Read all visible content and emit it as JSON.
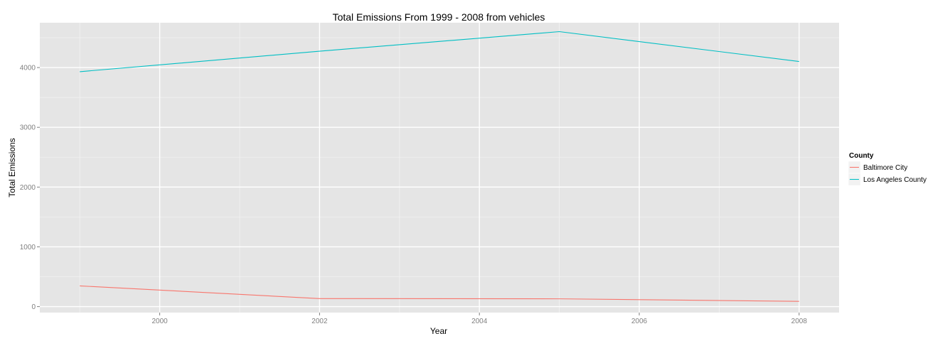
{
  "chart_data": {
    "type": "line",
    "title": "Total Emissions From 1999 - 2008 from vehicles",
    "xlabel": "Year",
    "ylabel": "Total Emissions",
    "xlim": [
      1998.5,
      2008.5
    ],
    "ylim": [
      -100,
      4750
    ],
    "x_ticks": [
      2000,
      2002,
      2004,
      2006,
      2008
    ],
    "y_ticks": [
      0,
      1000,
      2000,
      3000,
      4000
    ],
    "x_tick_labels": [
      "2000",
      "2002",
      "2004",
      "2006",
      "2008"
    ],
    "y_tick_labels": [
      "0",
      "1000",
      "2000",
      "3000",
      "4000"
    ],
    "grid": true,
    "legend": {
      "title": "County",
      "position": "right"
    },
    "series": [
      {
        "name": "Baltimore City",
        "color": "#F8766D",
        "x": [
          1999,
          2002,
          2005,
          2008
        ],
        "y": [
          346.82,
          134.31,
          130.43,
          88.28
        ]
      },
      {
        "name": "Los Angeles County",
        "color": "#00BFC4",
        "x": [
          1999,
          2002,
          2005,
          2008
        ],
        "y": [
          3931.12,
          4273.71,
          4601.41,
          4101.32
        ]
      }
    ]
  },
  "colors": {
    "panel_background": "#E5E5E5",
    "grid_major": "#FFFFFF",
    "grid_minor": "#F2F2F2"
  }
}
